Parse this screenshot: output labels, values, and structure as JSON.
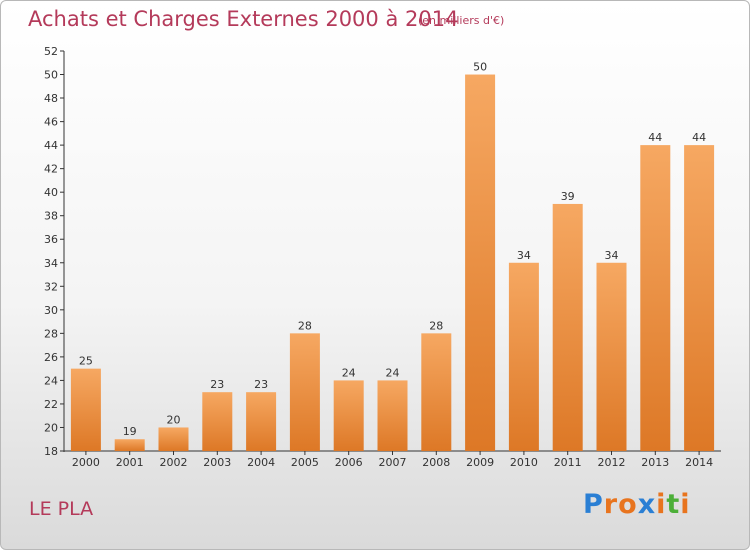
{
  "title": "Achats et Charges Externes 2000 à 2014",
  "subtitle": "(en milliers d'€)",
  "commune": "LE PLA",
  "logo": {
    "letters": [
      "P",
      "r",
      "o",
      "x",
      "i",
      "t",
      "i"
    ],
    "colors": [
      "#2a7fd4",
      "#e8741e",
      "#e8741e",
      "#2a7fd4",
      "#e8741e",
      "#4caf38",
      "#e8741e"
    ]
  },
  "colors": {
    "bar_light": "#f6a862",
    "bar_dark": "#dd7826",
    "accent": "#b43a5a"
  },
  "chart_data": {
    "type": "bar",
    "categories": [
      "2000",
      "2001",
      "2002",
      "2003",
      "2004",
      "2005",
      "2006",
      "2007",
      "2008",
      "2009",
      "2010",
      "2011",
      "2012",
      "2013",
      "2014"
    ],
    "values": [
      25,
      19,
      20,
      23,
      23,
      28,
      24,
      24,
      28,
      50,
      34,
      39,
      34,
      44,
      44
    ],
    "ylim": [
      18,
      52
    ],
    "yticks": [
      18,
      20,
      22,
      24,
      26,
      28,
      30,
      32,
      34,
      36,
      38,
      40,
      42,
      44,
      46,
      48,
      50,
      52
    ],
    "grid": false,
    "legend": "none"
  }
}
